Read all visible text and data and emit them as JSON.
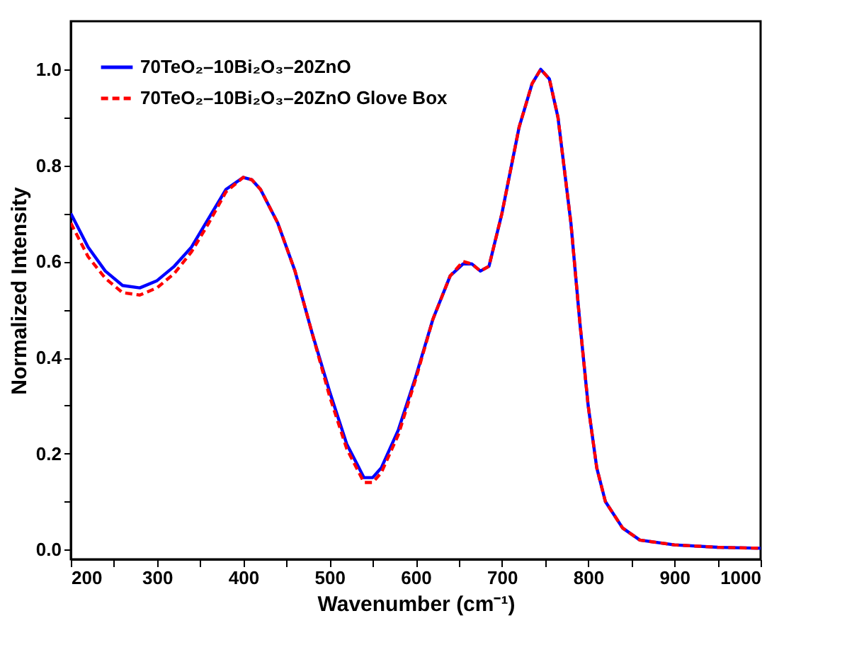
{
  "chart_data": {
    "type": "line",
    "xlabel": "Wavenumber (cm⁻¹)",
    "ylabel": "Normalized Intensity",
    "xlim": [
      200,
      1000
    ],
    "ylim": [
      -0.02,
      1.1
    ],
    "xticks": [
      200,
      {
        "value": 250,
        "label": null
      },
      300,
      {
        "value": 350,
        "label": null
      },
      400,
      {
        "value": 450,
        "label": null
      },
      500,
      {
        "value": 550,
        "label": null
      },
      600,
      {
        "value": 650,
        "label": null
      },
      700,
      {
        "value": 750,
        "label": null
      },
      800,
      {
        "value": 850,
        "label": null
      },
      900,
      {
        "value": 950,
        "label": null
      },
      1000
    ],
    "yticks": [
      {
        "value": 0,
        "label": "0.0"
      },
      {
        "value": 0.1,
        "label": null
      },
      0.2,
      {
        "value": 0.3,
        "label": null
      },
      0.4,
      {
        "value": 0.5,
        "label": null
      },
      0.6,
      {
        "value": 0.7,
        "label": null
      },
      0.8,
      {
        "value": 0.9,
        "label": null
      },
      {
        "value": 1,
        "label": "1.0"
      }
    ],
    "grid": false,
    "legend": "top left",
    "x": [
      200,
      220,
      240,
      260,
      280,
      300,
      320,
      340,
      360,
      380,
      400,
      410,
      420,
      440,
      460,
      480,
      500,
      520,
      540,
      550,
      560,
      580,
      600,
      620,
      640,
      655,
      665,
      675,
      685,
      700,
      720,
      735,
      745,
      755,
      765,
      780,
      790,
      800,
      810,
      820,
      840,
      860,
      900,
      950,
      1000
    ],
    "series": [
      {
        "name": "70TeO₂–10Bi₂O₃–20ZnO",
        "color": "#0000ff",
        "line_style": "solid",
        "values": [
          0.7,
          0.63,
          0.58,
          0.55,
          0.545,
          0.56,
          0.59,
          0.63,
          0.69,
          0.75,
          0.775,
          0.77,
          0.75,
          0.68,
          0.58,
          0.45,
          0.33,
          0.22,
          0.15,
          0.15,
          0.17,
          0.25,
          0.36,
          0.48,
          0.57,
          0.595,
          0.595,
          0.58,
          0.59,
          0.7,
          0.88,
          0.97,
          1.0,
          0.98,
          0.9,
          0.68,
          0.48,
          0.3,
          0.17,
          0.1,
          0.045,
          0.02,
          0.01,
          0.005,
          0.003
        ]
      },
      {
        "name": "70TeO₂–10Bi₂O₃–20ZnO Glove Box",
        "color": "#ff0000",
        "line_style": "dashed",
        "values": [
          0.68,
          0.61,
          0.565,
          0.535,
          0.53,
          0.545,
          0.575,
          0.62,
          0.68,
          0.745,
          0.775,
          0.77,
          0.75,
          0.68,
          0.58,
          0.45,
          0.32,
          0.21,
          0.14,
          0.14,
          0.16,
          0.24,
          0.355,
          0.48,
          0.57,
          0.6,
          0.595,
          0.58,
          0.59,
          0.7,
          0.88,
          0.97,
          1.0,
          0.98,
          0.9,
          0.68,
          0.48,
          0.3,
          0.17,
          0.1,
          0.045,
          0.02,
          0.01,
          0.005,
          0.003
        ]
      }
    ]
  }
}
